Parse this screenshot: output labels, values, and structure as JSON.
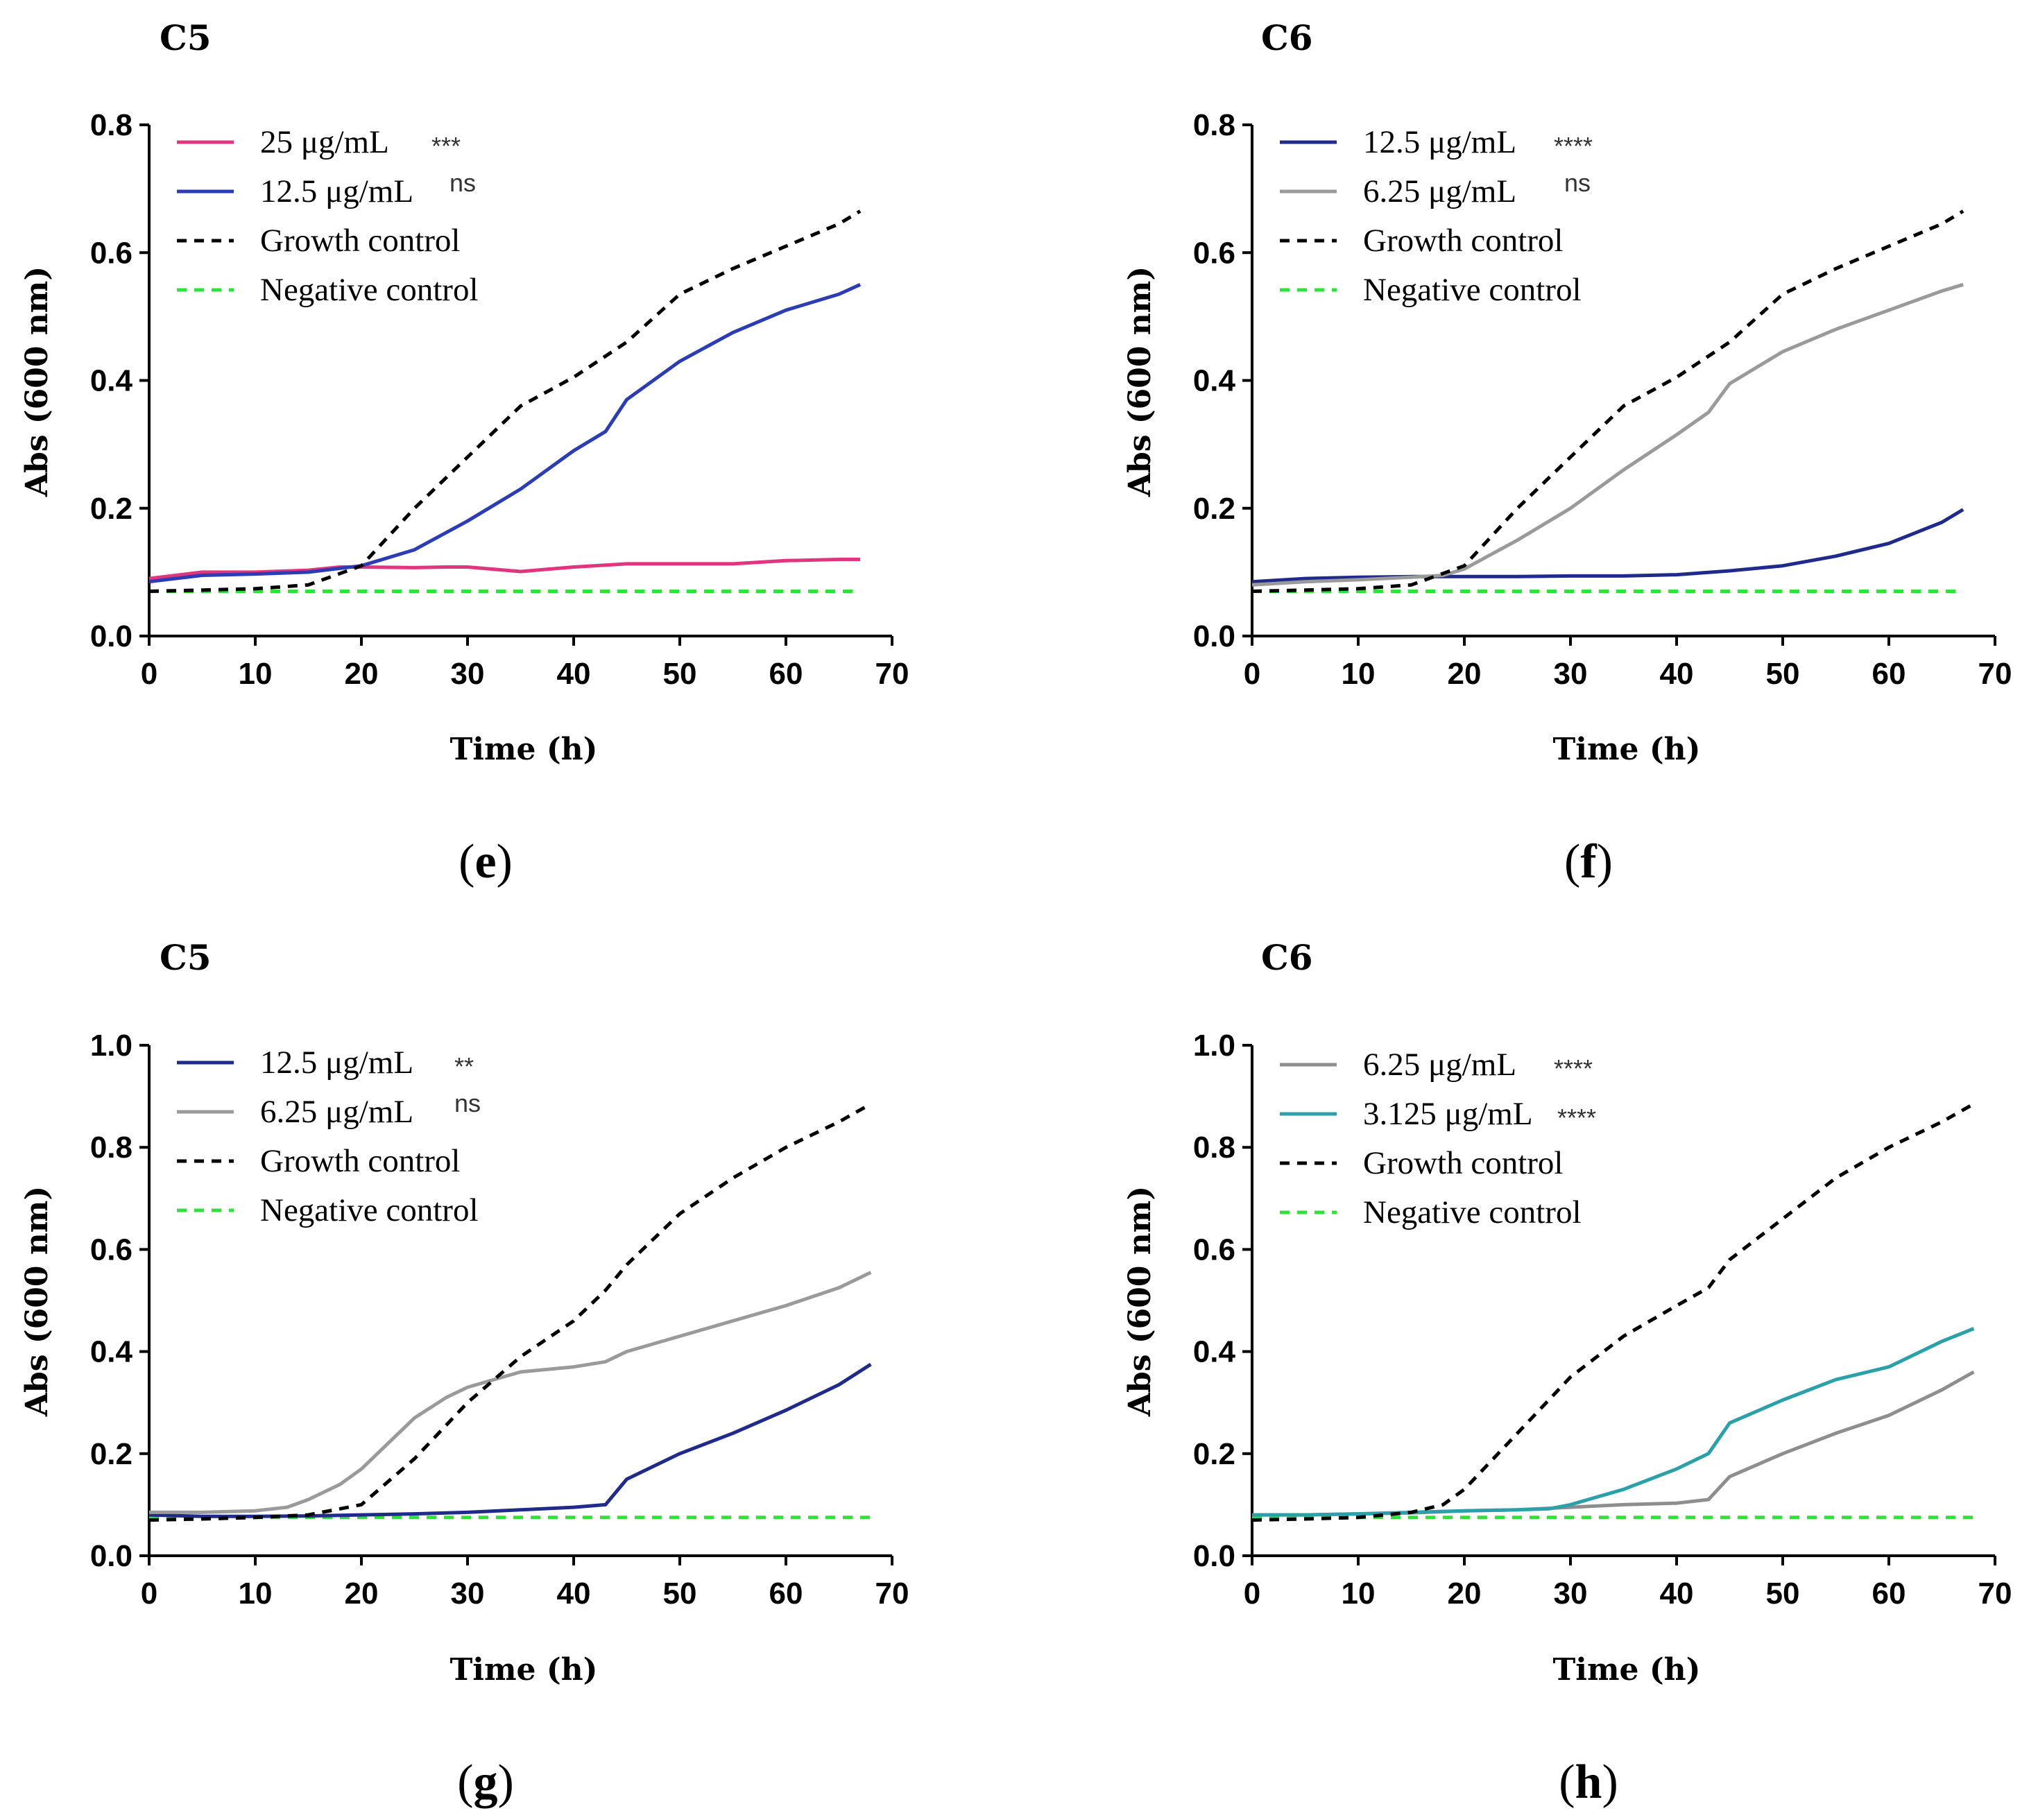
{
  "chart_data": [
    {
      "type": "line",
      "panel": "e",
      "title": "C5",
      "xlabel": "Time (h)",
      "ylabel": "Abs (600 nm)",
      "xlim": [
        0,
        70
      ],
      "ylim": [
        0,
        0.8
      ],
      "xticks": [
        "0",
        "10",
        "20",
        "30",
        "40",
        "50",
        "60",
        "70"
      ],
      "yticks": [
        "0.0",
        "0.2",
        "0.4",
        "0.6",
        "0.8"
      ],
      "legend_position": "top-left",
      "series": [
        {
          "name": "25 μg/mL",
          "sig": "***",
          "color": "#e0357f",
          "dash": "solid",
          "x": [
            0,
            5,
            10,
            15,
            18,
            20,
            25,
            28,
            30,
            35,
            40,
            45,
            50,
            55,
            60,
            65,
            67
          ],
          "y": [
            0.09,
            0.1,
            0.1,
            0.103,
            0.108,
            0.108,
            0.107,
            0.108,
            0.108,
            0.101,
            0.108,
            0.113,
            0.113,
            0.113,
            0.118,
            0.12,
            0.12
          ]
        },
        {
          "name": "12.5 μg/mL",
          "sig": "ns",
          "color": "#2b3cb5",
          "dash": "solid",
          "x": [
            0,
            5,
            10,
            15,
            20,
            25,
            30,
            35,
            40,
            43,
            45,
            50,
            55,
            60,
            65,
            67
          ],
          "y": [
            0.085,
            0.095,
            0.097,
            0.1,
            0.11,
            0.135,
            0.18,
            0.23,
            0.29,
            0.32,
            0.37,
            0.43,
            0.475,
            0.51,
            0.535,
            0.55
          ]
        },
        {
          "name": "Growth control",
          "sig": "",
          "color": "#000000",
          "dash": "dashed",
          "x": [
            0,
            5,
            10,
            15,
            20,
            25,
            30,
            35,
            40,
            45,
            50,
            55,
            60,
            65,
            67
          ],
          "y": [
            0.07,
            0.072,
            0.074,
            0.08,
            0.11,
            0.2,
            0.28,
            0.36,
            0.405,
            0.46,
            0.535,
            0.575,
            0.61,
            0.645,
            0.665
          ]
        },
        {
          "name": "Negative control",
          "sig": "",
          "color": "#2de33a",
          "dash": "dashed",
          "x": [
            0,
            67
          ],
          "y": [
            0.07,
            0.07
          ]
        }
      ]
    },
    {
      "type": "line",
      "panel": "f",
      "title": "C6",
      "xlabel": "Time (h)",
      "ylabel": "Abs (600 nm)",
      "xlim": [
        0,
        70
      ],
      "ylim": [
        0,
        0.8
      ],
      "xticks": [
        "0",
        "10",
        "20",
        "30",
        "40",
        "50",
        "60",
        "70"
      ],
      "yticks": [
        "0.0",
        "0.2",
        "0.4",
        "0.6",
        "0.8"
      ],
      "legend_position": "top-left",
      "series": [
        {
          "name": "12.5 μg/mL",
          "sig": "****",
          "color": "#1f2a8a",
          "dash": "solid",
          "x": [
            0,
            5,
            10,
            15,
            20,
            25,
            30,
            35,
            40,
            45,
            50,
            55,
            60,
            65,
            67
          ],
          "y": [
            0.085,
            0.09,
            0.092,
            0.093,
            0.093,
            0.093,
            0.094,
            0.094,
            0.096,
            0.102,
            0.11,
            0.125,
            0.145,
            0.178,
            0.198
          ]
        },
        {
          "name": "6.25 μg/mL",
          "sig": "ns",
          "color": "#9a9a9a",
          "dash": "solid",
          "x": [
            0,
            5,
            10,
            15,
            18,
            20,
            25,
            30,
            35,
            40,
            43,
            45,
            50,
            55,
            60,
            65,
            67
          ],
          "y": [
            0.08,
            0.085,
            0.088,
            0.092,
            0.095,
            0.105,
            0.15,
            0.2,
            0.26,
            0.315,
            0.35,
            0.395,
            0.445,
            0.48,
            0.51,
            0.54,
            0.55
          ]
        },
        {
          "name": "Growth control",
          "sig": "",
          "color": "#000000",
          "dash": "dashed",
          "x": [
            0,
            5,
            10,
            15,
            20,
            25,
            30,
            35,
            40,
            45,
            50,
            55,
            60,
            65,
            67
          ],
          "y": [
            0.07,
            0.072,
            0.074,
            0.08,
            0.11,
            0.2,
            0.28,
            0.36,
            0.405,
            0.46,
            0.535,
            0.575,
            0.61,
            0.645,
            0.665
          ]
        },
        {
          "name": "Negative control",
          "sig": "",
          "color": "#2de33a",
          "dash": "dashed",
          "x": [
            0,
            67
          ],
          "y": [
            0.07,
            0.07
          ]
        }
      ]
    },
    {
      "type": "line",
      "panel": "g",
      "title": "C5",
      "xlabel": "Time (h)",
      "ylabel": "Abs (600 nm)",
      "xlim": [
        0,
        70
      ],
      "ylim": [
        0,
        1.0
      ],
      "xticks": [
        "0",
        "10",
        "20",
        "30",
        "40",
        "50",
        "60",
        "70"
      ],
      "yticks": [
        "0.0",
        "0.2",
        "0.4",
        "0.6",
        "0.8",
        "1.0"
      ],
      "legend_position": "top-left",
      "series": [
        {
          "name": "12.5 μg/mL",
          "sig": "**",
          "color": "#1f2a8a",
          "dash": "solid",
          "x": [
            0,
            5,
            10,
            15,
            20,
            25,
            30,
            35,
            40,
            43,
            45,
            50,
            55,
            60,
            65,
            68
          ],
          "y": [
            0.08,
            0.077,
            0.077,
            0.078,
            0.08,
            0.082,
            0.085,
            0.09,
            0.095,
            0.1,
            0.15,
            0.2,
            0.24,
            0.285,
            0.335,
            0.375
          ]
        },
        {
          "name": "6.25 μg/mL",
          "sig": "ns",
          "color": "#9a9a9a",
          "dash": "solid",
          "x": [
            0,
            5,
            10,
            13,
            15,
            18,
            20,
            25,
            28,
            30,
            35,
            40,
            43,
            45,
            50,
            55,
            60,
            65,
            68
          ],
          "y": [
            0.085,
            0.085,
            0.088,
            0.095,
            0.11,
            0.14,
            0.17,
            0.27,
            0.31,
            0.33,
            0.36,
            0.37,
            0.38,
            0.4,
            0.43,
            0.46,
            0.49,
            0.525,
            0.555
          ]
        },
        {
          "name": "Growth control",
          "sig": "",
          "color": "#000000",
          "dash": "dashed",
          "x": [
            0,
            5,
            10,
            15,
            20,
            25,
            30,
            35,
            40,
            43,
            45,
            50,
            55,
            60,
            65,
            68
          ],
          "y": [
            0.07,
            0.072,
            0.075,
            0.08,
            0.1,
            0.19,
            0.3,
            0.39,
            0.46,
            0.52,
            0.57,
            0.67,
            0.74,
            0.8,
            0.85,
            0.885
          ]
        },
        {
          "name": "Negative control",
          "sig": "",
          "color": "#2de33a",
          "dash": "dashed",
          "x": [
            0,
            68
          ],
          "y": [
            0.075,
            0.075
          ]
        }
      ]
    },
    {
      "type": "line",
      "panel": "h",
      "title": "C6",
      "xlabel": "Time (h)",
      "ylabel": "Abs (600 nm)",
      "xlim": [
        0,
        70
      ],
      "ylim": [
        0,
        1.0
      ],
      "xticks": [
        "0",
        "10",
        "20",
        "30",
        "40",
        "50",
        "60",
        "70"
      ],
      "yticks": [
        "0.0",
        "0.2",
        "0.4",
        "0.6",
        "0.8",
        "1.0"
      ],
      "legend_position": "top-left",
      "series": [
        {
          "name": "6.25 μg/mL",
          "sig": "****",
          "color": "#8e8e8e",
          "dash": "solid",
          "x": [
            0,
            5,
            10,
            15,
            20,
            25,
            30,
            35,
            40,
            43,
            45,
            50,
            55,
            60,
            65,
            68
          ],
          "y": [
            0.08,
            0.08,
            0.082,
            0.084,
            0.088,
            0.09,
            0.095,
            0.1,
            0.103,
            0.11,
            0.155,
            0.2,
            0.24,
            0.275,
            0.325,
            0.36
          ]
        },
        {
          "name": "3.125 μg/mL",
          "sig": "****",
          "color": "#2aa0aa",
          "dash": "solid",
          "x": [
            0,
            5,
            10,
            15,
            20,
            25,
            28,
            30,
            35,
            40,
            43,
            45,
            50,
            55,
            60,
            65,
            68
          ],
          "y": [
            0.08,
            0.08,
            0.082,
            0.085,
            0.088,
            0.09,
            0.092,
            0.1,
            0.13,
            0.17,
            0.2,
            0.26,
            0.305,
            0.345,
            0.37,
            0.42,
            0.445
          ]
        },
        {
          "name": "Growth control",
          "sig": "",
          "color": "#000000",
          "dash": "dashed",
          "x": [
            0,
            5,
            10,
            15,
            18,
            20,
            25,
            30,
            35,
            40,
            43,
            45,
            50,
            55,
            60,
            65,
            68
          ],
          "y": [
            0.07,
            0.072,
            0.075,
            0.085,
            0.1,
            0.13,
            0.24,
            0.35,
            0.43,
            0.49,
            0.525,
            0.58,
            0.66,
            0.74,
            0.8,
            0.85,
            0.885
          ]
        },
        {
          "name": "Negative control",
          "sig": "",
          "color": "#2de33a",
          "dash": "dashed",
          "x": [
            0,
            68
          ],
          "y": [
            0.075,
            0.075
          ]
        }
      ]
    }
  ],
  "captions": [
    "e",
    "f",
    "g",
    "h"
  ]
}
